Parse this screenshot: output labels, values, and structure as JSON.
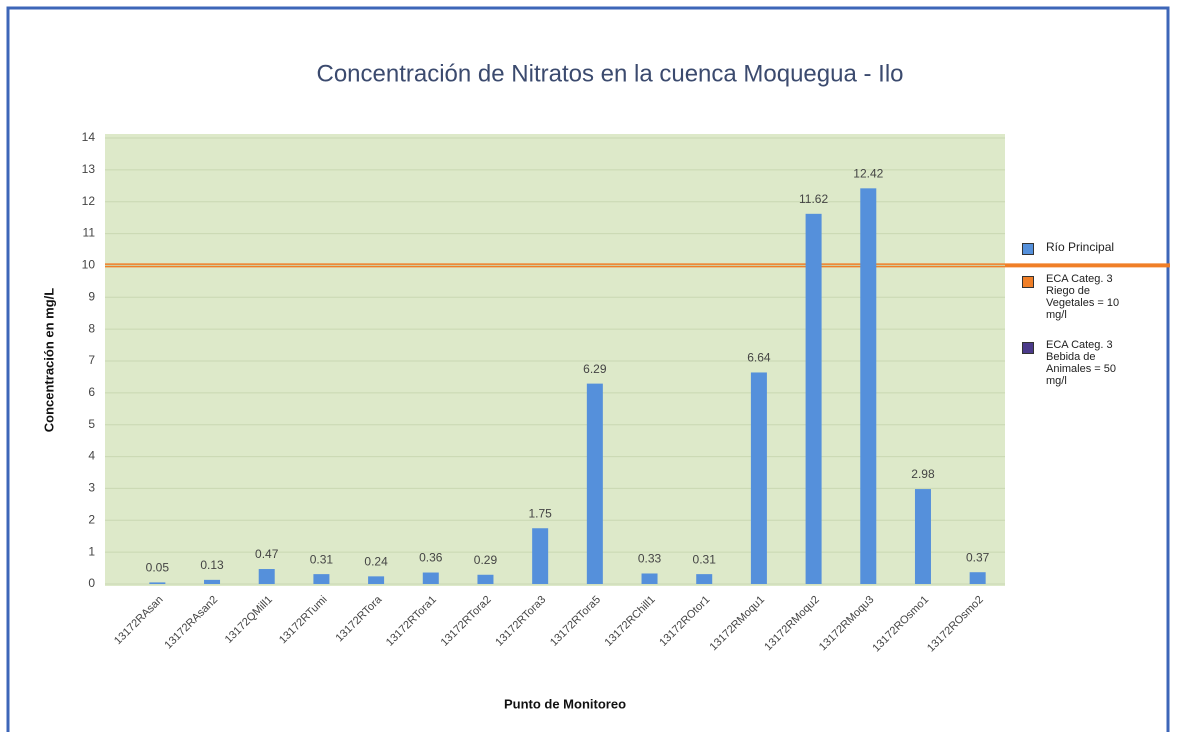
{
  "chart_data": {
    "type": "bar",
    "title": "Concentración de Nitratos en la cuenca Moquegua - Ilo",
    "y_label": "Concentración en mg/L",
    "x_label": "Punto de Monitoreo",
    "categories": [
      "13172RAsan",
      "13172RAsan2",
      "13172QMill1",
      "13172RTumi",
      "13172RTora",
      "13172RTora1",
      "13172RTora2",
      "13172RTora3",
      "13172RTora5",
      "13172RChill1",
      "13172ROtor1",
      "13172RMoqu1",
      "13172RMoqu2",
      "13172RMoqu3",
      "13172ROsmo1",
      "13172ROsmo2"
    ],
    "series": [
      {
        "name": "Río Principal",
        "color": "#5590db",
        "values": [
          0.05,
          0.13,
          0.47,
          0.31,
          0.24,
          0.36,
          0.29,
          1.75,
          6.29,
          0.33,
          0.31,
          6.64,
          11.62,
          12.42,
          2.98,
          0.37
        ]
      }
    ],
    "reference_lines": [
      {
        "name": "ECA Categ. 3 Riego de Vegetales = 10 mg/l",
        "value": 10,
        "color": "#f07f28"
      },
      {
        "name": "ECA Categ. 3 Bebida de Animales = 50 mg/l",
        "value": 50,
        "color": "#4b3a8a"
      }
    ],
    "ylim": [
      0,
      14
    ],
    "yticks": [
      0,
      1,
      2,
      3,
      4,
      5,
      6,
      7,
      8,
      9,
      10,
      11,
      12,
      13,
      14
    ],
    "grid": true,
    "legend": "right"
  }
}
